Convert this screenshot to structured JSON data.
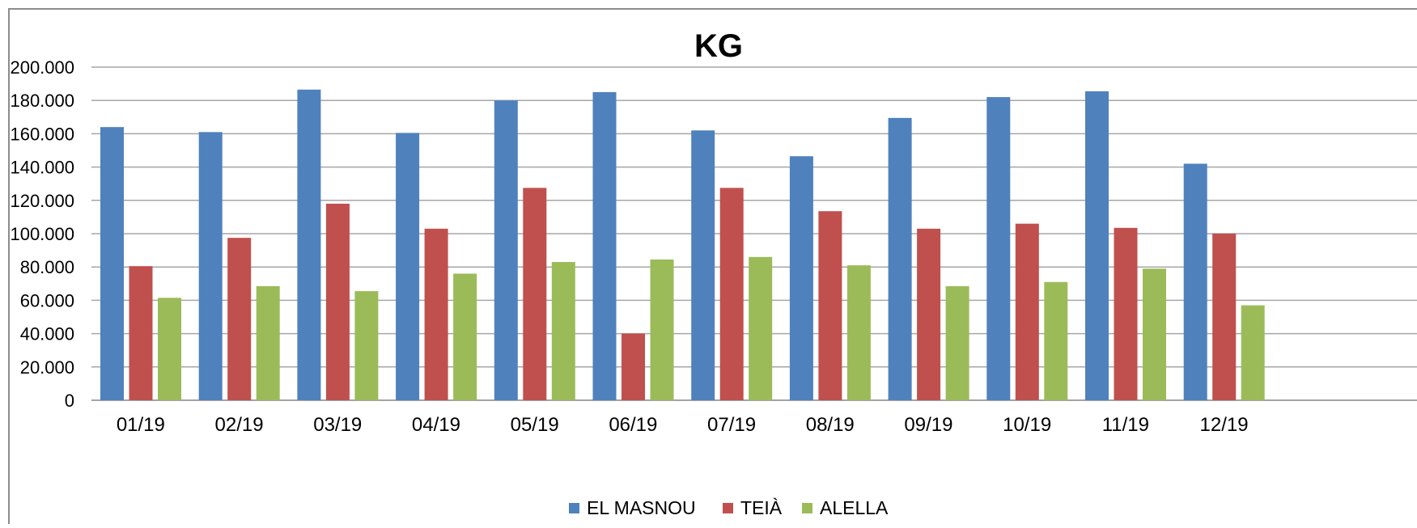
{
  "chart_data": {
    "type": "bar",
    "title": "KG",
    "xlabel": "",
    "ylabel": "",
    "ylim": [
      0,
      200000
    ],
    "yticks": [
      0,
      20000,
      40000,
      60000,
      80000,
      100000,
      120000,
      140000,
      160000,
      180000,
      200000
    ],
    "ytick_labels": [
      "0",
      "20.000",
      "40.000",
      "60.000",
      "80.000",
      "100.000",
      "120.000",
      "140.000",
      "160.000",
      "180.000",
      "200.000"
    ],
    "grid": true,
    "legend_position": "bottom",
    "categories": [
      "01/19",
      "02/19",
      "03/19",
      "04/19",
      "05/19",
      "06/19",
      "07/19",
      "08/19",
      "09/19",
      "10/19",
      "11/19",
      "12/19"
    ],
    "series": [
      {
        "name": "EL MASNOU",
        "color": "#4f81bd",
        "values": [
          164000,
          161000,
          186500,
          160500,
          180000,
          185000,
          162000,
          146500,
          169500,
          182000,
          185500,
          142000
        ]
      },
      {
        "name": "TEIÀ",
        "color": "#c0504d",
        "values": [
          80500,
          97500,
          118000,
          103000,
          127500,
          40000,
          127500,
          113500,
          103000,
          106000,
          103500,
          100000
        ]
      },
      {
        "name": "ALELLA",
        "color": "#9bbb59",
        "values": [
          61500,
          68500,
          65500,
          76000,
          83000,
          84500,
          86000,
          81000,
          68500,
          71000,
          79000,
          57000
        ]
      }
    ]
  }
}
